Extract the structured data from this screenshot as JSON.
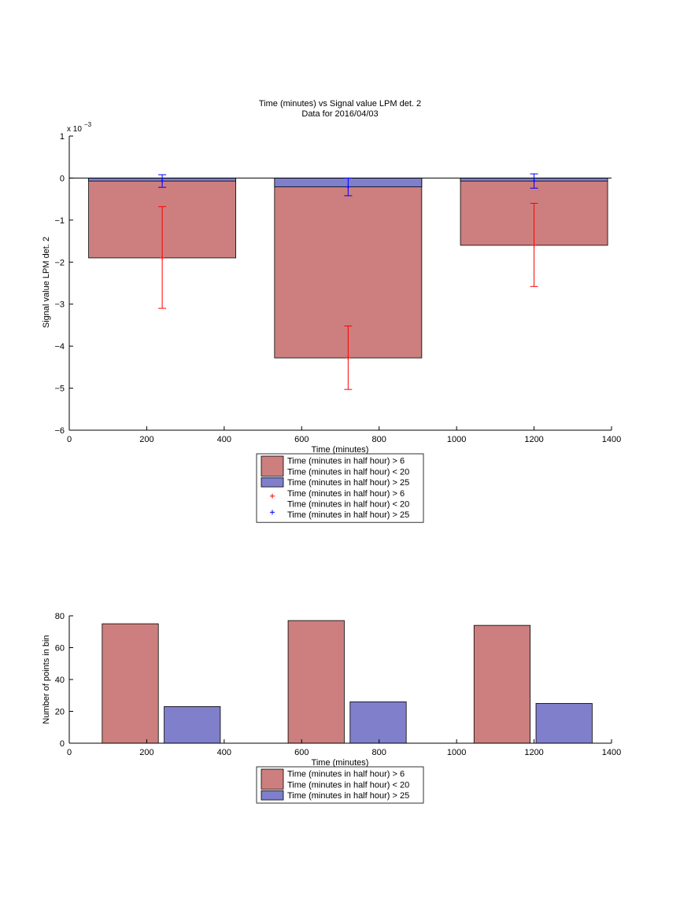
{
  "chart_data": [
    {
      "type": "bar",
      "title": "Time (minutes) vs Signal value LPM det. 2",
      "subtitle": "Data for 2016/04/03",
      "xlabel": "Time (minutes)",
      "ylabel": "Signal value LPM det. 2",
      "y_exponent_label": "x 10",
      "y_exponent": "−3",
      "xlim": [
        0,
        1400
      ],
      "ylim": [
        -6,
        1
      ],
      "y_multiplier": 0.001,
      "x_ticks": [
        "0",
        "200",
        "400",
        "600",
        "800",
        "1000",
        "1200",
        "1400"
      ],
      "y_ticks": [
        "1",
        "0",
        "−1",
        "−2",
        "−3",
        "−4",
        "−5",
        "−6"
      ],
      "bar_layout": "stacked",
      "bar_ranges": [
        [
          50,
          430
        ],
        [
          530,
          910
        ],
        [
          1010,
          1390
        ]
      ],
      "series": [
        {
          "name": "Time (minutes in half hour) > 6\nTime (minutes in half hour) < 20",
          "color": "#cc7f7e",
          "values": [
            -1.9,
            -4.28,
            -1.6
          ],
          "errorbars": {
            "x": [
              240,
              720,
              1200
            ],
            "center": [
              -1.9,
              -4.28,
              -1.6
            ],
            "low": [
              -3.1,
              -5.03,
              -2.58
            ],
            "high": [
              -0.68,
              -3.52,
              -0.6
            ],
            "color": "#ff0000"
          }
        },
        {
          "name": "Time (minutes in half hour) > 25",
          "color": "#7f7fcc",
          "values": [
            -0.07,
            -0.21,
            -0.07
          ],
          "errorbars": {
            "x": [
              240,
              720,
              1200
            ],
            "center": [
              -0.07,
              -0.21,
              -0.07
            ],
            "low": [
              -0.22,
              -0.42,
              -0.24
            ],
            "high": [
              0.08,
              0.0,
              0.1
            ],
            "color": "#0000ff"
          }
        }
      ],
      "legend": {
        "placement": "below",
        "entries": [
          {
            "kind": "patch",
            "color": "#cc7f7e",
            "lines": [
              "Time (minutes in half hour) > 6",
              "Time (minutes in half hour) < 20"
            ]
          },
          {
            "kind": "patch",
            "color": "#7f7fcc",
            "lines": [
              "Time (minutes in half hour) > 25"
            ]
          },
          {
            "kind": "marker",
            "color": "#ff0000",
            "lines": [
              "Time (minutes in half hour) > 6",
              "Time (minutes in half hour) < 20"
            ]
          },
          {
            "kind": "marker",
            "color": "#0000ff",
            "lines": [
              "Time (minutes in half hour) > 25"
            ]
          }
        ]
      },
      "grid": false
    },
    {
      "type": "bar",
      "title": "",
      "xlabel": "Time (minutes)",
      "ylabel": "Number of points in bin",
      "xlim": [
        0,
        1400
      ],
      "ylim": [
        0,
        80
      ],
      "x_ticks": [
        "0",
        "200",
        "400",
        "600",
        "800",
        "1000",
        "1200",
        "1400"
      ],
      "y_ticks": [
        "80",
        "60",
        "40",
        "20",
        "0"
      ],
      "bar_layout": "grouped",
      "series": [
        {
          "name": "Time (minutes in half hour) > 6\nTime (minutes in half hour) < 20",
          "color": "#cc7f7e",
          "bar_ranges": [
            [
              85,
              230
            ],
            [
              565,
              710
            ],
            [
              1045,
              1190
            ]
          ],
          "values": [
            75,
            77,
            74
          ]
        },
        {
          "name": "Time (minutes in half hour) > 25",
          "color": "#7f7fcc",
          "bar_ranges": [
            [
              245,
              390
            ],
            [
              725,
              870
            ],
            [
              1205,
              1350
            ]
          ],
          "values": [
            23,
            26,
            25
          ]
        }
      ],
      "legend": {
        "placement": "below",
        "entries": [
          {
            "kind": "patch",
            "color": "#cc7f7e",
            "lines": [
              "Time (minutes in half hour) > 6",
              "Time (minutes in half hour) < 20"
            ]
          },
          {
            "kind": "patch",
            "color": "#7f7fcc",
            "lines": [
              "Time (minutes in half hour) > 25"
            ]
          }
        ]
      },
      "grid": false
    }
  ]
}
